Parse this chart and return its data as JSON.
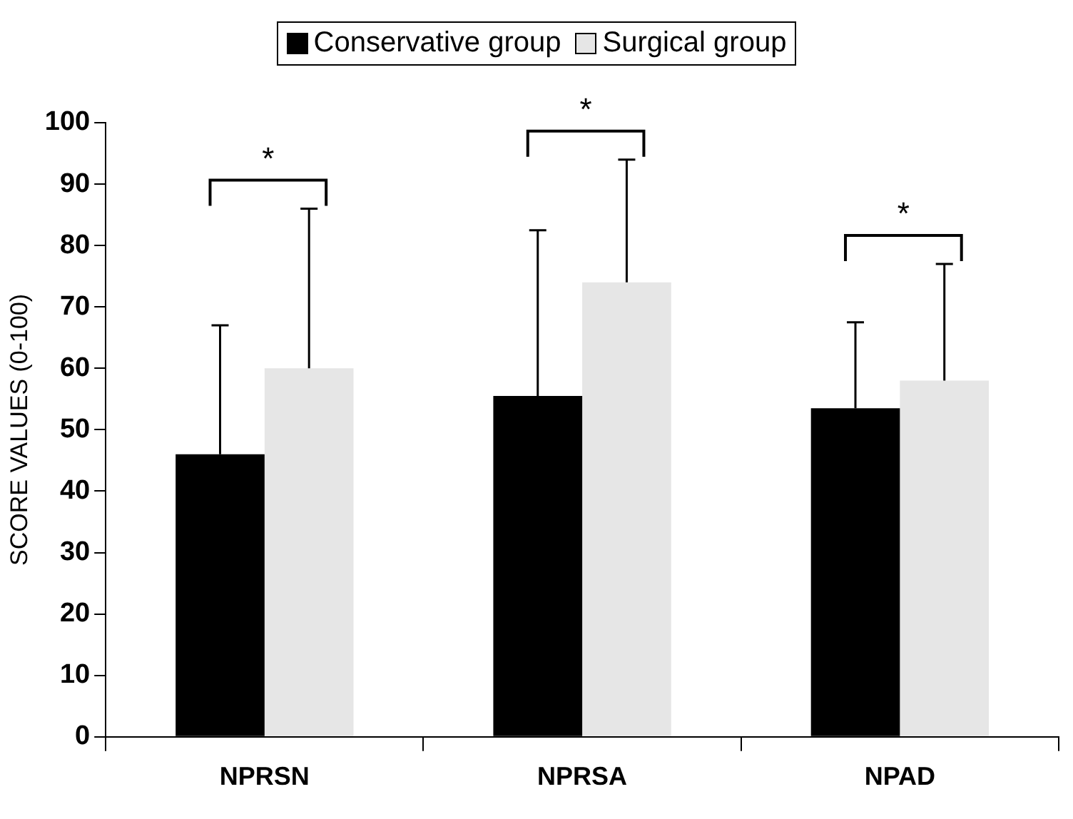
{
  "chart_data": {
    "type": "bar",
    "ylabel": "SCORE VALUES (0-100)",
    "categories": [
      "NPRSN",
      "NPRSA",
      "NPAD"
    ],
    "series": [
      {
        "name": "Conservative group",
        "color": "#000000",
        "values": [
          46,
          55.5,
          53.5
        ],
        "errors": [
          [
            46,
            67
          ],
          [
            55.5,
            82.5
          ],
          [
            53.5,
            67.5
          ]
        ]
      },
      {
        "name": "Surgical group",
        "color": "#e6e6e6",
        "values": [
          60,
          74,
          58
        ],
        "errors": [
          [
            60,
            86
          ],
          [
            74,
            94
          ],
          [
            58,
            77
          ]
        ]
      }
    ],
    "ylim": [
      0,
      100
    ],
    "yticks": [
      0,
      10,
      20,
      30,
      40,
      50,
      60,
      70,
      80,
      90,
      100
    ],
    "grid": false,
    "legend": "top",
    "annotations": [
      "*",
      "*",
      "*"
    ]
  }
}
